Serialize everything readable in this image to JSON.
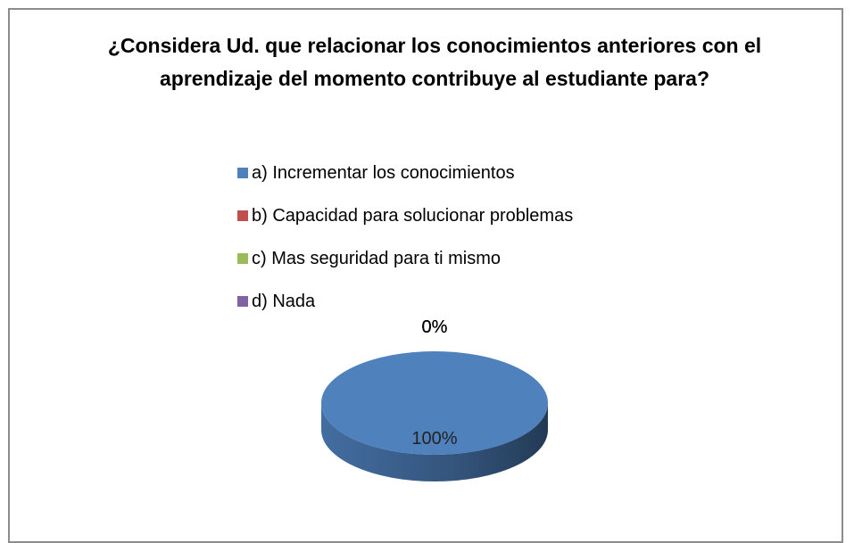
{
  "chart_data": {
    "type": "pie3d",
    "title": "¿Considera Ud. que relacionar los conocimientos anteriores con el aprendizaje del momento contribuye al estudiante para?",
    "categories": [
      "a) Incrementar los conocimientos",
      "b) Capacidad para solucionar problemas",
      "c) Mas seguridad para ti mismo",
      "d) Nada"
    ],
    "values": [
      100,
      0,
      0,
      0
    ],
    "value_labels": [
      "100%",
      "0%",
      "0%",
      "0%"
    ],
    "colors": [
      "#4f81bd",
      "#c0504d",
      "#9bbb59",
      "#8064a2"
    ],
    "legend": "top"
  }
}
